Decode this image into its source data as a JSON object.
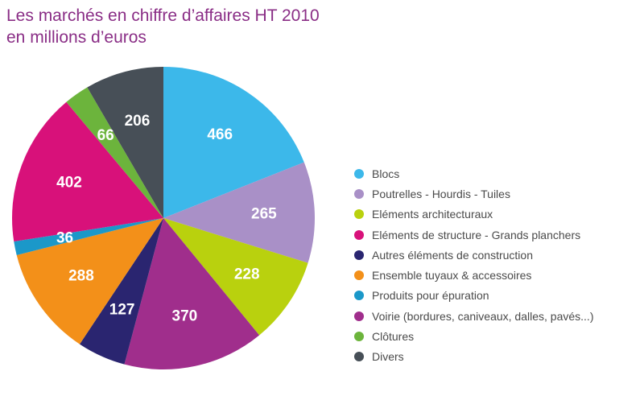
{
  "chart_data": {
    "type": "pie",
    "title": "Les marchés en chiffre d’affaires HT 2010",
    "subtitle": "en millions d’euros",
    "series": [
      {
        "label": "Blocs",
        "value": 466,
        "color": "#3cb8ea"
      },
      {
        "label": "Poutrelles - Hourdis - Tuiles",
        "value": 265,
        "color": "#a990c7"
      },
      {
        "label": "Eléments architecturaux",
        "value": 228,
        "color": "#b9d10e"
      },
      {
        "label": "Eléments de structure - Grands planchers",
        "value": 402,
        "color": "#d8117a"
      },
      {
        "label": "Autres éléments de construction",
        "value": 127,
        "color": "#2a2570"
      },
      {
        "label": "Ensemble tuyaux & accessoires",
        "value": 288,
        "color": "#f39019"
      },
      {
        "label": "Produits pour épuration",
        "value": 36,
        "color": "#1b98c9"
      },
      {
        "label": "Voirie (bordures, caniveaux, dalles, pavés...)",
        "value": 370,
        "color": "#a02e8c"
      },
      {
        "label": "Clôtures",
        "value": 66,
        "color": "#6cb43c"
      },
      {
        "label": "Divers",
        "value": 206,
        "color": "#474f57"
      }
    ],
    "pie_order": [
      0,
      1,
      2,
      7,
      4,
      5,
      6,
      3,
      8,
      9
    ],
    "start_angle_deg": 0,
    "direction": "clockwise",
    "legend_position": "right"
  }
}
